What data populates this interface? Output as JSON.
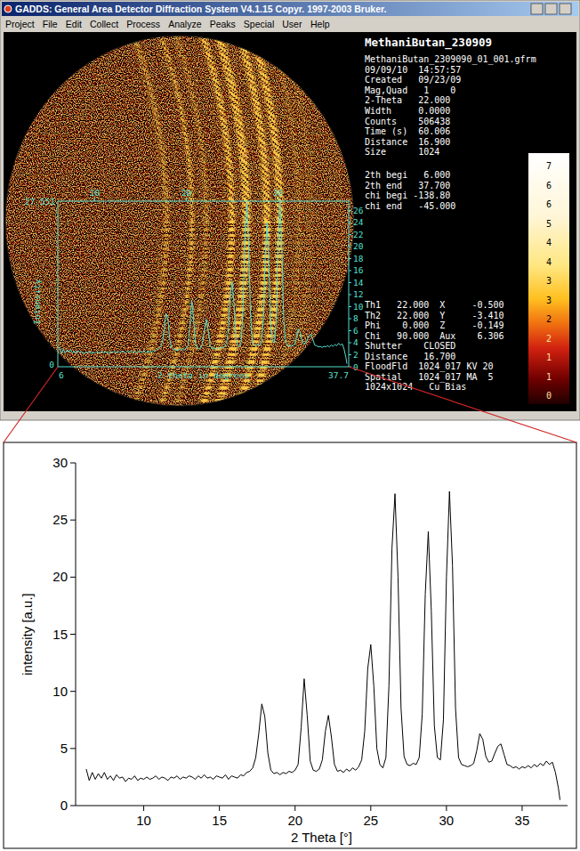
{
  "screenshot": {
    "window_title": "GADDS: General Area Detector Diffraction System V4.1.15  Copyr. 1997-2003 Bruker.",
    "menu": [
      "Project",
      "File",
      "Edit",
      "Collect",
      "Process",
      "Analyze",
      "Peaks",
      "Special",
      "User",
      "Help"
    ],
    "file_title": "MethaniButan_230909",
    "info_lines": [
      "MethaniButan_2309090_01_001.gfrm",
      "09/09/10  14:57:57",
      "Created   09/23/09",
      "Mag,Quad   1    0",
      "2-Theta   22.000",
      "Width     0.0000",
      "Counts    506438",
      "Time (s)  60.006",
      "Distance  16.900",
      "Size      1024"
    ],
    "range_lines": [
      "2th begi   6.000",
      "2th end   37.700",
      "chi begi -138.80",
      "chi end   -45.000"
    ],
    "color_scale": [
      7,
      6,
      6,
      5,
      4,
      4,
      3,
      3,
      2,
      2,
      1,
      1,
      0
    ],
    "status_lines": [
      "Th1   22.000  X     -0.500",
      "Th2   22.000  Y     -3.410",
      "Phi    0.000  Z     -0.149",
      "Chi   90.000  Aux    6.306",
      "Shutter    CLOSED",
      "Distance   16.700",
      "FloodFld  1024_017 KV 20",
      "Spatial   1024_017 MA  5",
      "1024x1024   Cu Bias"
    ],
    "inset": {
      "x_label": "2-theta in degrees",
      "y_label": "Intensity",
      "xlim": [
        6,
        37.7
      ],
      "ylim": [
        0,
        27.551
      ],
      "xticks": [
        10,
        20,
        30
      ],
      "yticks": [
        0,
        2,
        4,
        6,
        8,
        10,
        12,
        14,
        16,
        18,
        20,
        22,
        24,
        26
      ],
      "color": "#55e0d0"
    }
  },
  "chart_data": {
    "type": "line",
    "x_label": "2 Theta [°]",
    "y_label": "intensity [a.u.]",
    "color": "#000000",
    "xlim": [
      5.5,
      38
    ],
    "ylim": [
      0,
      30
    ],
    "xticks": [
      10,
      15,
      20,
      25,
      30,
      35
    ],
    "yticks": [
      0,
      5,
      10,
      15,
      20,
      25,
      30
    ],
    "x": [
      6.2,
      6.4,
      6.6,
      6.8,
      7.0,
      7.2,
      7.4,
      7.6,
      7.8,
      8.0,
      8.2,
      8.4,
      8.6,
      8.8,
      9.0,
      9.2,
      9.4,
      9.6,
      9.8,
      10.0,
      10.2,
      10.4,
      10.6,
      10.8,
      11.0,
      11.2,
      11.4,
      11.6,
      11.8,
      12.0,
      12.2,
      12.4,
      12.6,
      12.8,
      13.0,
      13.2,
      13.4,
      13.6,
      13.8,
      14.0,
      14.2,
      14.4,
      14.6,
      14.8,
      15.0,
      15.2,
      15.4,
      15.6,
      15.8,
      16.0,
      16.2,
      16.4,
      16.6,
      16.8,
      17.0,
      17.2,
      17.4,
      17.6,
      17.8,
      18.0,
      18.2,
      18.4,
      18.6,
      18.8,
      19.0,
      19.2,
      19.4,
      19.6,
      19.8,
      20.0,
      20.2,
      20.4,
      20.6,
      20.8,
      21.0,
      21.2,
      21.4,
      21.6,
      21.8,
      22.0,
      22.2,
      22.4,
      22.6,
      22.8,
      23.0,
      23.2,
      23.4,
      23.6,
      23.8,
      24.0,
      24.2,
      24.4,
      24.6,
      24.8,
      25.0,
      25.2,
      25.4,
      25.6,
      25.8,
      26.0,
      26.2,
      26.4,
      26.6,
      26.8,
      27.0,
      27.2,
      27.4,
      27.6,
      27.8,
      28.0,
      28.2,
      28.4,
      28.6,
      28.8,
      29.0,
      29.2,
      29.4,
      29.6,
      29.8,
      30.0,
      30.2,
      30.4,
      30.6,
      30.8,
      31.0,
      31.2,
      31.4,
      31.6,
      31.8,
      32.0,
      32.2,
      32.4,
      32.6,
      32.8,
      33.0,
      33.2,
      33.4,
      33.6,
      33.8,
      34.0,
      34.2,
      34.4,
      34.6,
      34.8,
      35.0,
      35.2,
      35.4,
      35.6,
      35.8,
      36.0,
      36.2,
      36.4,
      36.6,
      36.8,
      37.0,
      37.2,
      37.4,
      37.5
    ],
    "values": [
      3.2,
      2.2,
      2.9,
      2.3,
      2.8,
      2.4,
      2.9,
      2.3,
      2.6,
      2.2,
      2.7,
      2.4,
      2.5,
      2.1,
      2.4,
      2.3,
      2.6,
      2.2,
      2.4,
      2.3,
      2.5,
      2.3,
      2.4,
      2.6,
      2.3,
      2.5,
      2.4,
      2.2,
      2.5,
      2.4,
      2.6,
      2.3,
      2.5,
      2.4,
      2.6,
      2.5,
      2.3,
      2.6,
      2.4,
      2.7,
      2.4,
      2.5,
      2.3,
      2.6,
      2.5,
      2.4,
      2.7,
      2.3,
      2.6,
      2.5,
      2.4,
      2.7,
      2.6,
      2.9,
      3.0,
      3.3,
      4.2,
      6.3,
      8.9,
      7.8,
      4.6,
      3.1,
      2.8,
      2.9,
      2.7,
      2.9,
      2.8,
      3.0,
      2.9,
      3.1,
      3.6,
      6.8,
      11.1,
      7.9,
      3.9,
      3.1,
      3.0,
      3.2,
      4.0,
      6.5,
      7.9,
      6.0,
      3.6,
      3.0,
      3.1,
      2.9,
      3.2,
      3.0,
      3.3,
      3.1,
      3.4,
      4.0,
      6.5,
      12.0,
      14.1,
      10.5,
      5.0,
      3.6,
      3.3,
      4.2,
      10.5,
      22.5,
      27.3,
      20.0,
      8.5,
      4.3,
      3.6,
      3.5,
      3.7,
      3.6,
      4.2,
      8.0,
      18.5,
      24.0,
      17.0,
      7.0,
      4.2,
      4.0,
      7.5,
      20.0,
      27.5,
      21.0,
      8.5,
      4.2,
      3.6,
      3.5,
      3.4,
      3.5,
      3.7,
      4.8,
      6.3,
      5.8,
      4.3,
      3.8,
      3.9,
      4.6,
      5.2,
      5.4,
      4.5,
      3.6,
      3.5,
      3.3,
      3.4,
      3.2,
      3.4,
      3.3,
      3.5,
      3.3,
      3.6,
      3.4,
      3.7,
      3.5,
      3.9,
      3.6,
      3.8,
      2.9,
      1.5,
      0.5
    ]
  }
}
